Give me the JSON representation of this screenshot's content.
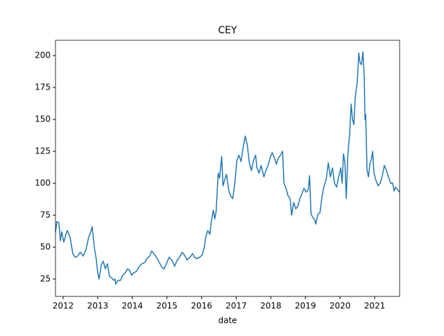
{
  "chart_data": {
    "type": "line",
    "title": "CEY",
    "xlabel": "date",
    "color": "#1f77b4",
    "xlim": [
      2011.78,
      2021.72
    ],
    "xticks": [
      2012,
      2013,
      2014,
      2015,
      2016,
      2017,
      2018,
      2019,
      2020,
      2021
    ],
    "ylim": [
      11.4,
      212
    ],
    "yticks": [
      25,
      50,
      75,
      100,
      125,
      150,
      175,
      200
    ],
    "x": [
      2011.78,
      2011.82,
      2011.88,
      2011.92,
      2011.96,
      2012.02,
      2012.08,
      2012.12,
      2012.2,
      2012.28,
      2012.35,
      2012.42,
      2012.5,
      2012.58,
      2012.66,
      2012.74,
      2012.8,
      2012.84,
      2012.9,
      2012.96,
      2013.0,
      2013.04,
      2013.1,
      2013.16,
      2013.22,
      2013.28,
      2013.34,
      2013.4,
      2013.46,
      2013.5,
      2013.52,
      2013.58,
      2013.66,
      2013.72,
      2013.8,
      2013.86,
      2013.92,
      2013.98,
      2014.04,
      2014.12,
      2014.2,
      2014.28,
      2014.36,
      2014.42,
      2014.5,
      2014.56,
      2014.62,
      2014.7,
      2014.78,
      2014.86,
      2014.92,
      2015.0,
      2015.06,
      2015.14,
      2015.22,
      2015.3,
      2015.36,
      2015.44,
      2015.5,
      2015.58,
      2015.66,
      2015.74,
      2015.8,
      2015.86,
      2015.94,
      2016.02,
      2016.08,
      2016.12,
      2016.18,
      2016.24,
      2016.28,
      2016.34,
      2016.38,
      2016.42,
      2016.48,
      2016.52,
      2016.58,
      2016.62,
      2016.66,
      2016.72,
      2016.78,
      2016.84,
      2016.9,
      2016.96,
      2017.02,
      2017.08,
      2017.14,
      2017.2,
      2017.26,
      2017.32,
      2017.38,
      2017.44,
      2017.5,
      2017.56,
      2017.6,
      2017.66,
      2017.72,
      2017.8,
      2017.86,
      2017.92,
      2017.98,
      2018.04,
      2018.1,
      2018.16,
      2018.22,
      2018.28,
      2018.34,
      2018.38,
      2018.44,
      2018.5,
      2018.56,
      2018.6,
      2018.66,
      2018.72,
      2018.78,
      2018.84,
      2018.9,
      2018.96,
      2019.02,
      2019.08,
      2019.12,
      2019.16,
      2019.22,
      2019.26,
      2019.3,
      2019.36,
      2019.42,
      2019.48,
      2019.54,
      2019.6,
      2019.66,
      2019.72,
      2019.78,
      2019.84,
      2019.9,
      2019.96,
      2020.02,
      2020.06,
      2020.1,
      2020.14,
      2020.18,
      2020.22,
      2020.28,
      2020.32,
      2020.36,
      2020.4,
      2020.44,
      2020.5,
      2020.54,
      2020.58,
      2020.62,
      2020.66,
      2020.7,
      2020.72,
      2020.74,
      2020.78,
      2020.82,
      2020.86,
      2020.9,
      2020.94,
      2020.98,
      2021.04,
      2021.1,
      2021.16,
      2021.22,
      2021.28,
      2021.34,
      2021.4,
      2021.46,
      2021.52,
      2021.56,
      2021.6,
      2021.66,
      2021.72
    ],
    "values": [
      62,
      70,
      69,
      55,
      62,
      54,
      60,
      63,
      58,
      45,
      42,
      43,
      46,
      43,
      48,
      58,
      62,
      66,
      50,
      40,
      30,
      25,
      36,
      39,
      33,
      37,
      27,
      26,
      24,
      25,
      21,
      24,
      24,
      28,
      30,
      33,
      32,
      28,
      30,
      31,
      35,
      37,
      38,
      41,
      43,
      47,
      45,
      42,
      38,
      34,
      33,
      38,
      42,
      40,
      35,
      40,
      42,
      46,
      44,
      40,
      42,
      45,
      42,
      41,
      42,
      44,
      50,
      58,
      63,
      60,
      70,
      79,
      72,
      78,
      108,
      104,
      121,
      98,
      102,
      107,
      95,
      90,
      88,
      100,
      118,
      122,
      117,
      128,
      137,
      130,
      116,
      110,
      118,
      122,
      112,
      108,
      114,
      105,
      110,
      114,
      120,
      124,
      120,
      115,
      120,
      122,
      125,
      100,
      96,
      90,
      88,
      75,
      85,
      80,
      82,
      88,
      92,
      96,
      93,
      95,
      106,
      76,
      73,
      72,
      68,
      76,
      77,
      90,
      98,
      103,
      116,
      105,
      112,
      100,
      97,
      105,
      112,
      100,
      123,
      116,
      88,
      120,
      140,
      162,
      150,
      146,
      168,
      180,
      202,
      194,
      193,
      203,
      182,
      150,
      154,
      110,
      105,
      115,
      118,
      125,
      108,
      102,
      98,
      100,
      106,
      114,
      110,
      105,
      100,
      100,
      94,
      97,
      95,
      93
    ]
  }
}
